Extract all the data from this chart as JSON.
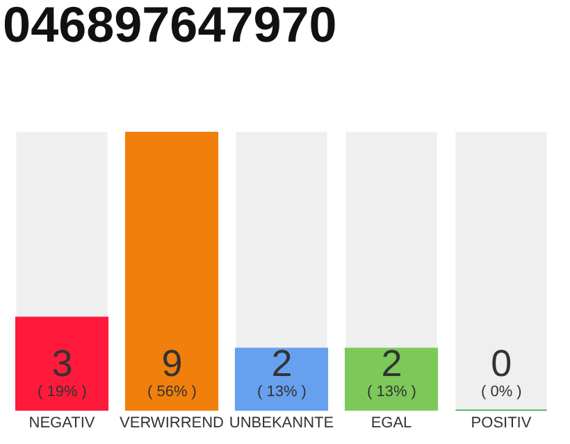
{
  "chart_data": {
    "type": "bar",
    "title": "046897647970",
    "categories": [
      "NEGATIV",
      "VERWIRREND",
      "UNBEKANNTE",
      "EGAL",
      "POSITIV"
    ],
    "values": [
      3,
      9,
      2,
      2,
      0
    ],
    "colors": [
      "#ff1a3c",
      "#f17f0c",
      "#67a0ef",
      "#7cc95a",
      "#27a844"
    ],
    "value_labels": [
      "3\n( 19% )",
      "9\n( 56% )",
      "2\n( 13% )",
      "2\n( 13% )",
      "0\n( 0% )"
    ],
    "tick_labels": "x",
    "grid": false,
    "legend": false
  }
}
